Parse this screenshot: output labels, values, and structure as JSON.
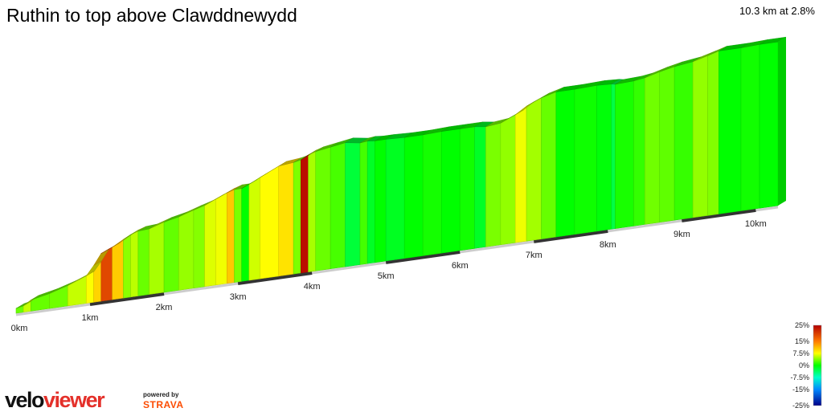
{
  "title": "Ruthin to top above Clawddnewydd",
  "summary": "10.3 km at 2.8%",
  "branding": {
    "logo_left": "velo",
    "logo_right": "viewer",
    "powered_by": "powered by",
    "partner": "STRAVA"
  },
  "colors": {
    "brand_red": "#e4302a",
    "strava_orange": "#fc4c02",
    "road_dark": "#333333",
    "road_light": "#cccccc"
  },
  "chart_data": {
    "type": "area",
    "title": "Ruthin to top above Clawddnewydd",
    "xlabel": "",
    "ylabel": "",
    "x_unit": "km",
    "xlim": [
      0,
      10.3
    ],
    "x_ticks": [
      {
        "value": 0,
        "label": "0km"
      },
      {
        "value": 1,
        "label": "1km"
      },
      {
        "value": 2,
        "label": "2km"
      },
      {
        "value": 3,
        "label": "3km"
      },
      {
        "value": 4,
        "label": "4km"
      },
      {
        "value": 5,
        "label": "5km"
      },
      {
        "value": 6,
        "label": "6km"
      },
      {
        "value": 7,
        "label": "7km"
      },
      {
        "value": 8,
        "label": "8km"
      },
      {
        "value": 9,
        "label": "9km"
      },
      {
        "value": 10,
        "label": "10km"
      }
    ],
    "distance_km": [
      0,
      0.1,
      0.2,
      0.45,
      0.7,
      0.95,
      1.05,
      1.15,
      1.3,
      1.45,
      1.55,
      1.65,
      1.8,
      2.0,
      2.2,
      2.4,
      2.55,
      2.7,
      2.85,
      2.95,
      3.05,
      3.15,
      3.3,
      3.55,
      3.75,
      3.85,
      3.95,
      4.05,
      4.25,
      4.45,
      4.65,
      4.75,
      4.85,
      5.0,
      5.25,
      5.5,
      5.75,
      6.0,
      6.2,
      6.35,
      6.55,
      6.75,
      6.9,
      7.1,
      7.3,
      7.55,
      7.85,
      8.05,
      8.1,
      8.35,
      8.5,
      8.7,
      8.9,
      9.15,
      9.35,
      9.5,
      9.8,
      10.05,
      10.3
    ],
    "elevation_rel": [
      0,
      2,
      8,
      13,
      20,
      29,
      41,
      55,
      61,
      69,
      74,
      77,
      78,
      84,
      88,
      94,
      98,
      104,
      110,
      113,
      113,
      117,
      124,
      135,
      137,
      139,
      144,
      147,
      150,
      153,
      150,
      151,
      150,
      150,
      149,
      149,
      150,
      150,
      150,
      148,
      150,
      158,
      167,
      175,
      180,
      180,
      181,
      180,
      179,
      180,
      182,
      187,
      191,
      194,
      199,
      203,
      203,
      204,
      204
    ],
    "gradient_pct": [
      3.1,
      5.8,
      3.0,
      3.3,
      5.8,
      7.4,
      9.9,
      19.1,
      10.4,
      4.1,
      5.5,
      3.1,
      4.9,
      2.9,
      4.4,
      3.9,
      6.5,
      7.1,
      10.6,
      3.6,
      0.0,
      6.1,
      7.6,
      9.1,
      3.7,
      24.0,
      4.9,
      3.1,
      2.1,
      -2.1,
      2.0,
      -1.4,
      0.0,
      -1.2,
      0.0,
      0.6,
      0.0,
      0.5,
      -1.4,
      3.6,
      4.3,
      7.0,
      4.8,
      3.0,
      0.0,
      0.4,
      -0.3,
      -2.6,
      0.7,
      1.5,
      3.3,
      2.8,
      1.6,
      4.3,
      3.8,
      0.0,
      0.5,
      0.0
    ],
    "color_scale": {
      "labels": [
        "25%",
        "15%",
        "7.5%",
        "0%",
        "-7.5%",
        "-15%",
        "-25%"
      ],
      "values": [
        25,
        15,
        7.5,
        0,
        -7.5,
        -15,
        -25
      ]
    },
    "grid": false,
    "legend": "bottom-right"
  }
}
